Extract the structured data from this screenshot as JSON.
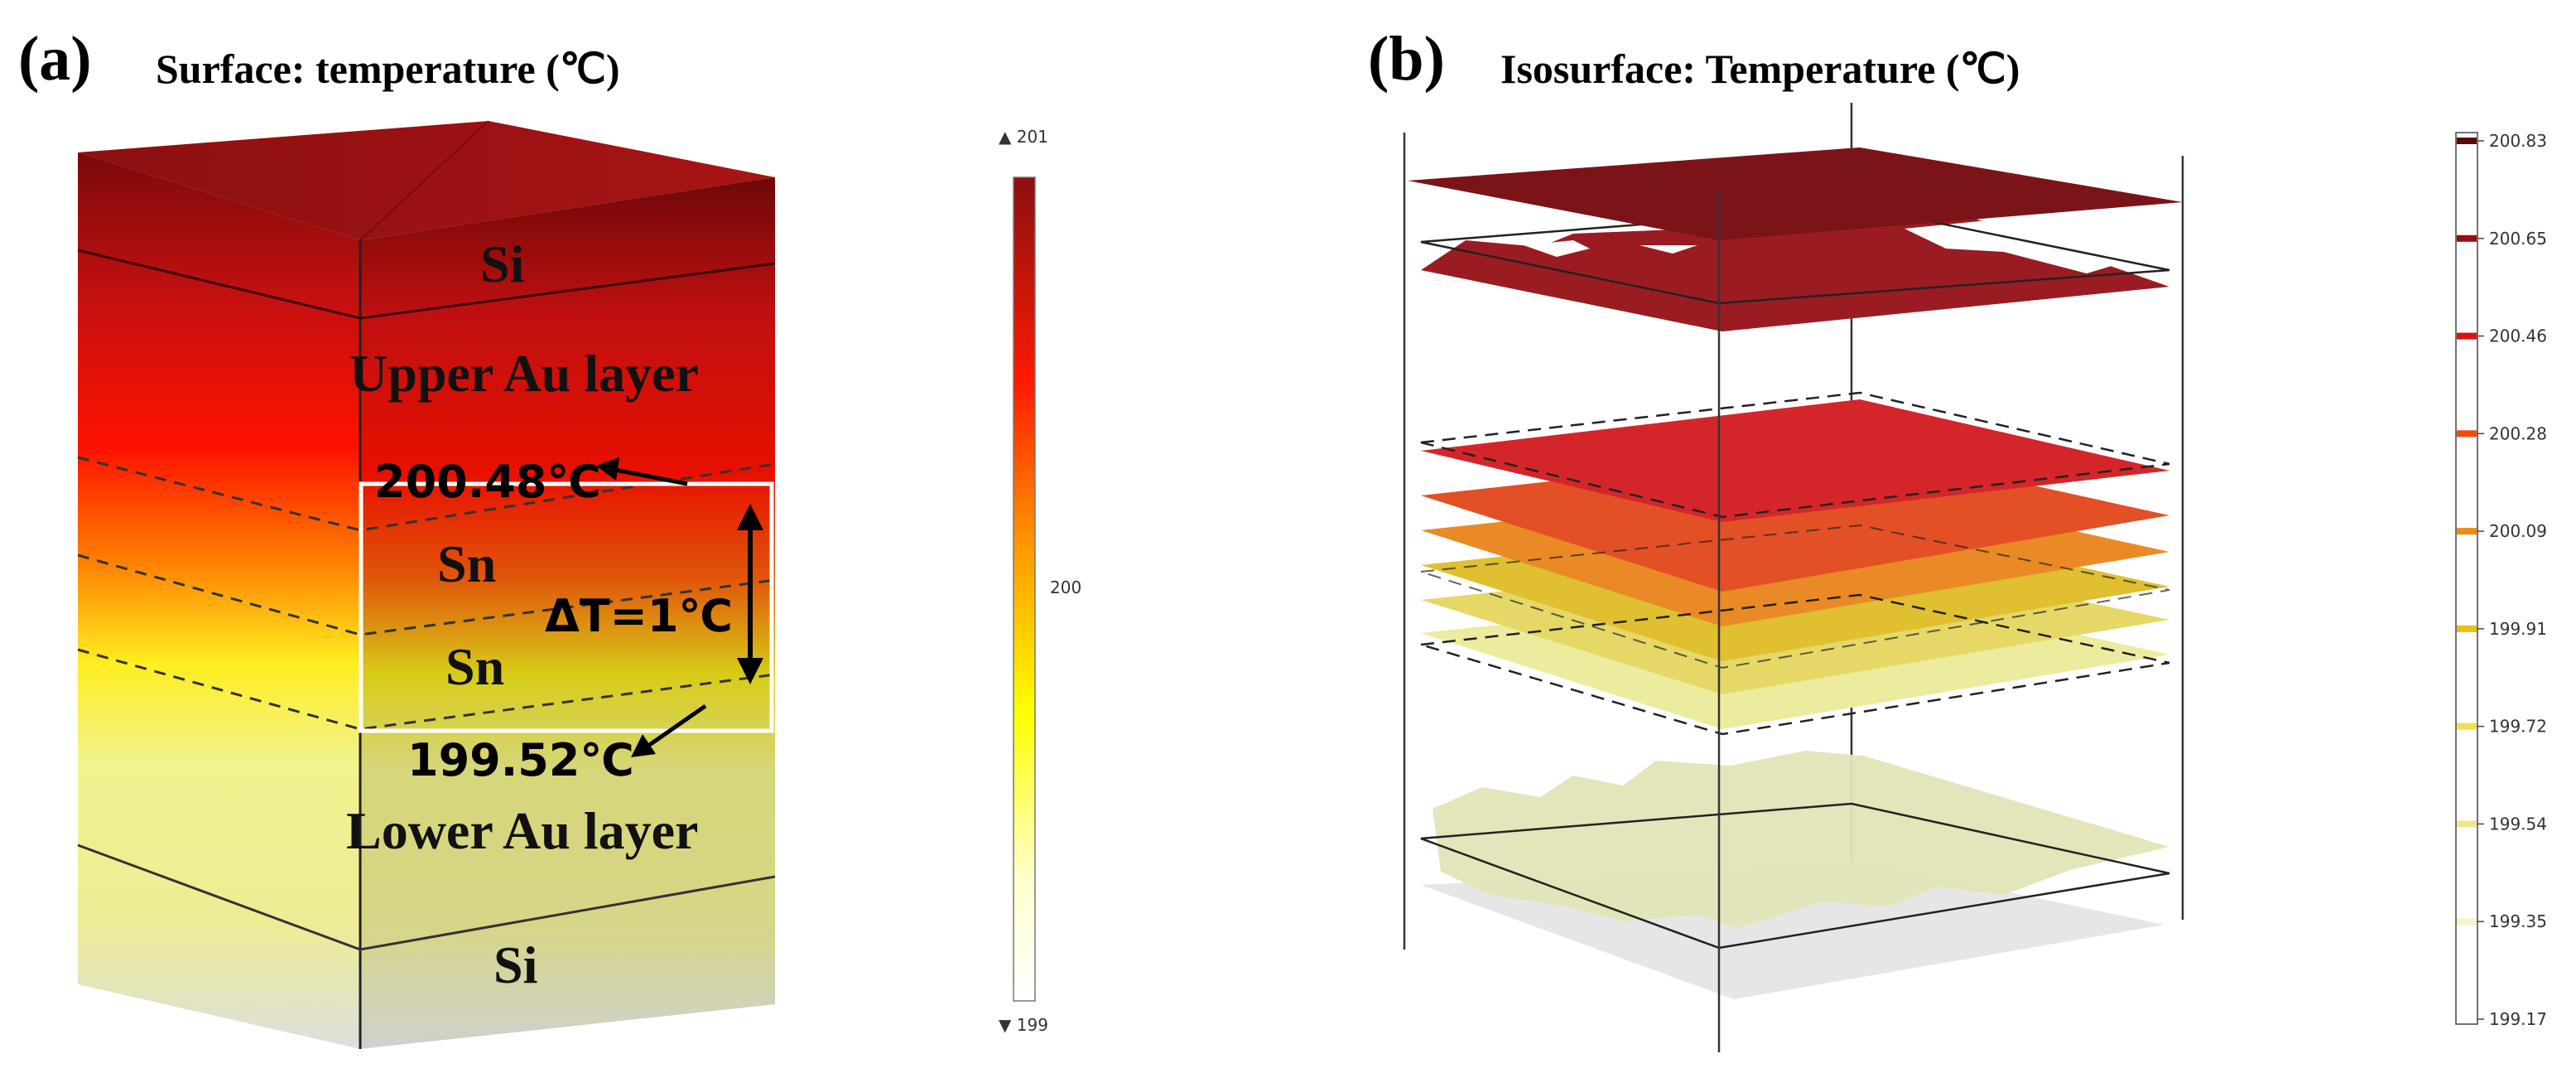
{
  "panel_a": {
    "letter": "(a)",
    "title": "Surface: temperature (℃)",
    "layers": {
      "si_top": "Si",
      "upper_au": "Upper Au layer",
      "sn_upper": "Sn",
      "sn_lower": "Sn",
      "lower_au": "Lower Au layer",
      "si_bottom": "Si"
    },
    "annotations": {
      "t_high": "200.48℃",
      "t_low": "199.52℃",
      "delta_t": "ΔT=1℃"
    },
    "colorbar": {
      "max_label": "▲ 201",
      "mid_label": "200",
      "min_label": "▼ 199",
      "max_value": 201,
      "mid_value": 200,
      "min_value": 199,
      "gradient": [
        "#8a1010",
        "#ff1a00",
        "#ff9900",
        "#ffff00",
        "#ffffe0",
        "#ffffff"
      ]
    }
  },
  "panel_b": {
    "letter": "(b)",
    "title": "Isosurface: Temperature (℃)",
    "colorbar": {
      "ticks": [
        "200.83",
        "200.65",
        "200.46",
        "200.28",
        "200.09",
        "199.91",
        "199.72",
        "199.54",
        "199.35",
        "199.17"
      ],
      "tick_colors": [
        "#5a0a0a",
        "#a00a0a",
        "#e01010",
        "#ef4a10",
        "#f08a10",
        "#e8c010",
        "#f0e050",
        "#f0e888",
        "#f6f3c8",
        "#ffffff"
      ]
    },
    "isosurface_colors": [
      "#7a1418",
      "#9a1c22",
      "#d4262a",
      "#e35026",
      "#ea8a26",
      "#e0bf30",
      "#e6d867",
      "#ecec9e",
      "#e2e2b4",
      "#e6e6e6"
    ]
  }
}
